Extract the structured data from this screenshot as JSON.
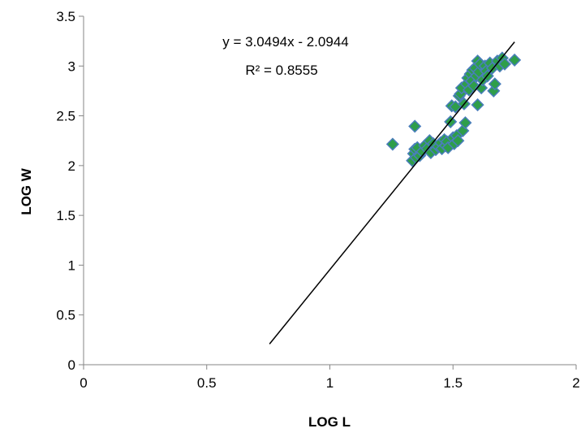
{
  "chart_data": {
    "type": "scatter",
    "title": "",
    "xlabel": "LOG L",
    "ylabel": "LOG W",
    "xlim": [
      0,
      2
    ],
    "ylim": [
      0,
      3.5
    ],
    "xticks": [
      "0",
      "0.5",
      "1",
      "1.5",
      "2"
    ],
    "yticks": [
      "0",
      "0.5",
      "1",
      "1.5",
      "2",
      "2.5",
      "3",
      "3.5"
    ],
    "grid": false,
    "legend": false,
    "marker": "diamond",
    "marker_fill": "#2e9e4a",
    "marker_edge": "#4a7ebb",
    "trendline": {
      "type": "linear",
      "slope": 3.0494,
      "intercept": -2.0944,
      "x_range": [
        0.755,
        1.75
      ],
      "color": "#000000"
    },
    "annotations": [
      "y = 3.0494x - 2.0944",
      "R² = 0.8555"
    ],
    "points": [
      [
        1.255,
        2.215
      ],
      [
        1.345,
        2.395
      ],
      [
        1.335,
        2.05
      ],
      [
        1.34,
        2.12
      ],
      [
        1.345,
        2.165
      ],
      [
        1.35,
        2.08
      ],
      [
        1.355,
        2.18
      ],
      [
        1.365,
        2.1
      ],
      [
        1.375,
        2.14
      ],
      [
        1.385,
        2.2
      ],
      [
        1.395,
        2.17
      ],
      [
        1.405,
        2.25
      ],
      [
        1.41,
        2.13
      ],
      [
        1.42,
        2.22
      ],
      [
        1.43,
        2.16
      ],
      [
        1.44,
        2.19
      ],
      [
        1.45,
        2.23
      ],
      [
        1.455,
        2.17
      ],
      [
        1.465,
        2.26
      ],
      [
        1.47,
        2.2
      ],
      [
        1.475,
        2.24
      ],
      [
        1.48,
        2.18
      ],
      [
        1.49,
        2.44
      ],
      [
        1.495,
        2.6
      ],
      [
        1.5,
        2.28
      ],
      [
        1.505,
        2.22
      ],
      [
        1.51,
        2.59
      ],
      [
        1.515,
        2.3
      ],
      [
        1.52,
        2.25
      ],
      [
        1.525,
        2.7
      ],
      [
        1.53,
        2.72
      ],
      [
        1.535,
        2.78
      ],
      [
        1.54,
        2.35
      ],
      [
        1.545,
        2.62
      ],
      [
        1.55,
        2.43
      ],
      [
        1.555,
        2.82
      ],
      [
        1.56,
        2.88
      ],
      [
        1.565,
        2.76
      ],
      [
        1.57,
        2.92
      ],
      [
        1.575,
        2.85
      ],
      [
        1.58,
        2.96
      ],
      [
        1.585,
        2.8
      ],
      [
        1.59,
        2.98
      ],
      [
        1.595,
        2.9
      ],
      [
        1.6,
        3.05
      ],
      [
        1.6,
        2.61
      ],
      [
        1.605,
        2.94
      ],
      [
        1.61,
        3.02
      ],
      [
        1.615,
        2.78
      ],
      [
        1.62,
        2.86
      ],
      [
        1.63,
        3.0
      ],
      [
        1.635,
        2.95
      ],
      [
        1.64,
        2.9
      ],
      [
        1.65,
        3.03
      ],
      [
        1.66,
        2.98
      ],
      [
        1.665,
        2.75
      ],
      [
        1.67,
        2.82
      ],
      [
        1.68,
        3.05
      ],
      [
        1.69,
        3.0
      ],
      [
        1.7,
        3.08
      ],
      [
        1.71,
        3.02
      ],
      [
        1.75,
        3.06
      ]
    ]
  }
}
